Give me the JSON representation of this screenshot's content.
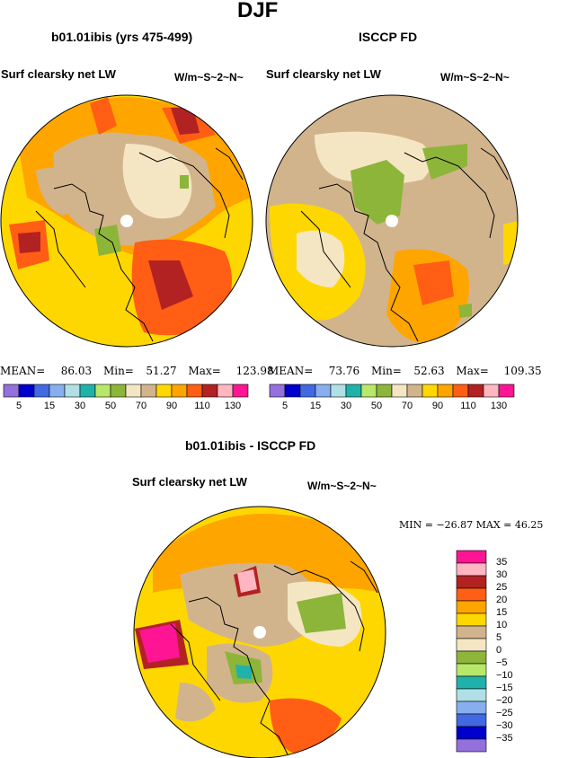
{
  "figure": {
    "season": "DJF",
    "panels": [
      {
        "title": "b01.01ibis (yrs 475-499)",
        "variable": "Surf clearsky net LW",
        "units": "W/m~S~2~N~",
        "stats": {
          "mean_label": "MEAN=",
          "mean": "86.03",
          "min_label": "Min=",
          "min": "51.27",
          "max_label": "Max=",
          "max": "123.98"
        }
      },
      {
        "title": "ISCCP FD",
        "variable": "Surf clearsky net LW",
        "units": "W/m~S~2~N~",
        "stats": {
          "mean_label": "MEAN=",
          "mean": "73.76",
          "min_label": "Min=",
          "min": "52.63",
          "max_label": "Max=",
          "max": "109.35"
        }
      },
      {
        "title": "b01.01ibis - ISCCP FD",
        "variable": "Surf clearsky net LW",
        "units": "W/m~S~2~N~",
        "stats_text": "MIN = −26.87  MAX =   46.25"
      }
    ],
    "colorbar_top": {
      "colors": [
        "#9370db",
        "#0000cd",
        "#4169e1",
        "#87aeee",
        "#b0e0e6",
        "#20b2aa",
        "#b8e86a",
        "#8db53a",
        "#f5e6c3",
        "#d2b48c",
        "#ffd700",
        "#ffa500",
        "#ff5e14",
        "#b22222",
        "#ffb6c1",
        "#ff1493"
      ],
      "labels": [
        "5",
        "15",
        "30",
        "50",
        "70",
        "90",
        "110",
        "130"
      ]
    },
    "colorbar_diff": {
      "colors_top_to_bottom": [
        "#ff1493",
        "#ffb6c1",
        "#b22222",
        "#ff5e14",
        "#ffa500",
        "#ffd700",
        "#d2b48c",
        "#f5e6c3",
        "#8db53a",
        "#b8e86a",
        "#20b2aa",
        "#b0e0e6",
        "#87aeee",
        "#4169e1",
        "#0000cd",
        "#9370db"
      ],
      "labels": [
        "35",
        "30",
        "25",
        "20",
        "15",
        "10",
        "5",
        "0",
        "−5",
        "−10",
        "−15",
        "−20",
        "−25",
        "−30",
        "−35"
      ]
    }
  }
}
